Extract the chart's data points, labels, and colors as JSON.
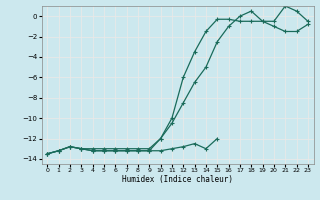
{
  "title": "",
  "xlabel": "Humidex (Indice chaleur)",
  "bg_color": "#cce8ee",
  "grid_color": "#f0f0f0",
  "line_color": "#1a6b5a",
  "xlim": [
    -0.5,
    23.5
  ],
  "ylim": [
    -14.5,
    1.0
  ],
  "xticks": [
    0,
    1,
    2,
    3,
    4,
    5,
    6,
    7,
    8,
    9,
    10,
    11,
    12,
    13,
    14,
    15,
    16,
    17,
    18,
    19,
    20,
    21,
    22,
    23
  ],
  "yticks": [
    0,
    -2,
    -4,
    -6,
    -8,
    -10,
    -12,
    -14
  ],
  "line1_x": [
    0,
    1,
    2,
    3,
    4,
    5,
    6,
    7,
    8,
    9,
    10,
    11,
    12,
    13,
    14,
    15,
    16,
    17,
    18,
    19,
    20,
    21,
    22,
    23
  ],
  "line1_y": [
    -13.5,
    -13.2,
    -12.8,
    -13.0,
    -13.2,
    -13.2,
    -13.2,
    -13.2,
    -13.2,
    -13.2,
    -12.0,
    -10.0,
    -6.0,
    -3.5,
    -1.5,
    -0.3,
    -0.3,
    -0.5,
    -0.5,
    -0.5,
    -1.0,
    -1.5,
    -1.5,
    -0.8
  ],
  "line2_x": [
    0,
    1,
    2,
    3,
    4,
    5,
    6,
    7,
    8,
    9,
    10,
    11,
    12,
    13,
    14,
    15,
    16,
    17,
    18,
    19,
    20,
    21,
    22,
    23
  ],
  "line2_y": [
    -13.5,
    -13.2,
    -12.8,
    -13.0,
    -13.0,
    -13.0,
    -13.0,
    -13.0,
    -13.0,
    -13.0,
    -12.0,
    -10.5,
    -8.5,
    -6.5,
    -5.0,
    -2.5,
    -1.0,
    0.0,
    0.5,
    -0.5,
    -0.5,
    1.0,
    0.5,
    -0.5
  ],
  "line3_x": [
    0,
    1,
    2,
    3,
    4,
    5,
    6,
    7,
    8,
    9,
    10,
    11,
    12,
    13,
    14,
    15
  ],
  "line3_y": [
    -13.5,
    -13.2,
    -12.8,
    -13.0,
    -13.2,
    -13.2,
    -13.2,
    -13.2,
    -13.2,
    -13.2,
    -13.2,
    -13.0,
    -12.8,
    -12.5,
    -13.0,
    -12.0
  ]
}
